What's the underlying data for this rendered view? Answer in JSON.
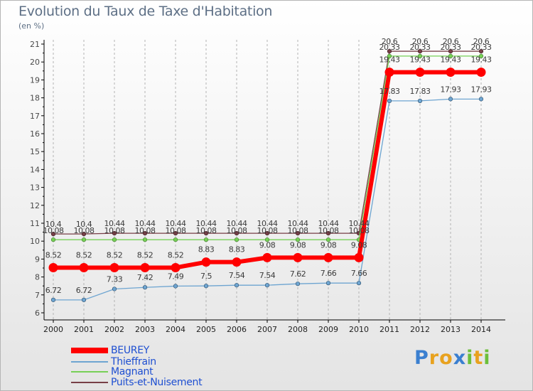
{
  "title": "Evolution du Taux de Taxe d'Habitation",
  "subtitle": "(en %)",
  "logo": {
    "text": "Proxiti"
  },
  "colors": {
    "beurey": "#ff0000",
    "thieffrain": "#6ea5d1",
    "magnant": "#77d057",
    "puits": "#773f47",
    "axis": "#000000",
    "grid": "#b3b3b3",
    "label": "#4a4a4a",
    "legend_text": "#1e4fd1"
  },
  "chart_data": {
    "type": "line",
    "title": "Evolution du Taux de Taxe d'Habitation",
    "ylabel": "(en %)",
    "xlabel": "",
    "x": [
      "2000",
      "2001",
      "2002",
      "2003",
      "2004",
      "2005",
      "2006",
      "2007",
      "2008",
      "2009",
      "2010",
      "2011",
      "2012",
      "2013",
      "2014"
    ],
    "ylim": [
      6,
      21
    ],
    "yticks": [
      "6",
      "7",
      "8",
      "9",
      "10",
      "11",
      "12",
      "13",
      "14",
      "15",
      "16",
      "17",
      "18",
      "19",
      "20",
      "21"
    ],
    "grid": "vertical-dashed",
    "legend": "bottom-left",
    "series": [
      {
        "name": "BEUREY",
        "color": "#ff0000",
        "values": [
          8.52,
          8.52,
          8.52,
          8.52,
          8.52,
          8.83,
          8.83,
          9.08,
          9.08,
          9.08,
          9.08,
          19.43,
          19.43,
          19.43,
          19.43
        ],
        "labels": [
          "8.52",
          "8.52",
          "8.52",
          "8.52",
          "8.52",
          "8.83",
          "8.83",
          "9.08",
          "9.08",
          "9.08",
          "9.08",
          "19.43",
          "19.43",
          "19.43",
          "19.43"
        ]
      },
      {
        "name": "Thieffrain",
        "color": "#6ea5d1",
        "values": [
          6.72,
          6.72,
          7.33,
          7.42,
          7.49,
          7.5,
          7.54,
          7.54,
          7.62,
          7.66,
          7.66,
          17.83,
          17.83,
          17.93,
          17.93
        ],
        "labels": [
          "6.72",
          "6.72",
          "7.33",
          "7.42",
          "7.49",
          "7.5",
          "7.54",
          "7.54",
          "7.62",
          "7.66",
          "7.66",
          "17.83",
          "17.83",
          "17.93",
          "17.93"
        ]
      },
      {
        "name": "Magnant",
        "color": "#77d057",
        "values": [
          10.08,
          10.08,
          10.08,
          10.08,
          10.08,
          10.08,
          10.08,
          10.08,
          10.08,
          10.08,
          10.08,
          20.33,
          20.33,
          20.33,
          20.33
        ],
        "labels": [
          "10.08",
          "10.08",
          "10.08",
          "10.08",
          "10.08",
          "10.08",
          "10.08",
          "10.08",
          "10.08",
          "10.08",
          "10.08",
          "20.33",
          "20.33",
          "20.33",
          "20.33"
        ]
      },
      {
        "name": "Puits-et-Nuisement",
        "color": "#773f47",
        "values": [
          10.4,
          10.4,
          10.44,
          10.44,
          10.44,
          10.44,
          10.44,
          10.44,
          10.44,
          10.44,
          10.44,
          20.6,
          20.6,
          20.6,
          20.6
        ],
        "labels": [
          "10.4",
          "10.4",
          "10.44",
          "10.44",
          "10.44",
          "10.44",
          "10.44",
          "10.44",
          "10.44",
          "10.44",
          "10.44",
          "20.6",
          "20.6",
          "20.6",
          "20.6"
        ]
      }
    ]
  }
}
